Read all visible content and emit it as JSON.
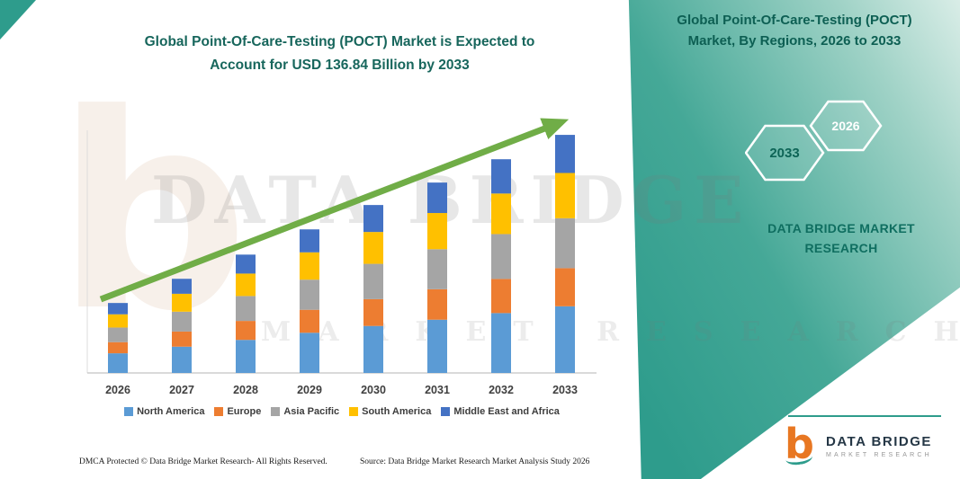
{
  "header": {
    "title_line1": "Global Point-Of-Care-Testing (POCT) Market is Expected to",
    "title_line2": "Account for USD 136.84 Billion by 2033"
  },
  "side_panel": {
    "title": "Global Point-Of-Care-Testing (POCT) Market, By Regions, 2026 to 2033",
    "hexagons": [
      {
        "year": "2033"
      },
      {
        "year": "2026"
      }
    ],
    "brand_line1": "DATA BRIDGE MARKET",
    "brand_line2": "RESEARCH",
    "accent_color": "#2E9C8C"
  },
  "watermark": {
    "letter": "b",
    "line1": "DATA BRIDGE",
    "line2": "MARKET RESEARCH"
  },
  "chart_data": {
    "type": "bar",
    "stacked": true,
    "title": "Global Point-Of-Care-Testing (POCT) Market is Expected to Account for USD 136.84 Billion by 2033",
    "unit": "USD Billion",
    "categories": [
      "2026",
      "2027",
      "2028",
      "2029",
      "2030",
      "2031",
      "2032",
      "2033"
    ],
    "series": [
      {
        "name": "North America",
        "color": "#5B9BD5",
        "values": [
          11.3,
          15.1,
          19.0,
          23.1,
          27.0,
          30.6,
          34.4,
          38.3
        ]
      },
      {
        "name": "Europe",
        "color": "#ED7D31",
        "values": [
          6.4,
          8.7,
          10.9,
          13.2,
          15.4,
          17.5,
          19.6,
          21.9
        ]
      },
      {
        "name": "Asia Pacific",
        "color": "#A5A5A5",
        "values": [
          8.4,
          11.4,
          14.3,
          17.3,
          20.3,
          23.0,
          25.8,
          28.7
        ]
      },
      {
        "name": "South America",
        "color": "#FFC000",
        "values": [
          7.6,
          10.3,
          12.9,
          15.7,
          18.3,
          20.8,
          23.3,
          26.0
        ]
      },
      {
        "name": "Middle East and Africa",
        "color": "#4472C4",
        "values": [
          6.5,
          8.6,
          10.9,
          13.2,
          15.5,
          17.5,
          19.7,
          21.9
        ]
      }
    ],
    "totals": [
      40.2,
      54.1,
      68.0,
      82.5,
      96.5,
      109.4,
      122.8,
      136.84
    ],
    "ylim": [
      0,
      145
    ],
    "grid": false,
    "legend_position": "bottom",
    "trend_arrow": {
      "show": true,
      "color": "#70AD47"
    }
  },
  "footer": {
    "dmca": "DMCA Protected © Data Bridge Market Research-  All Rights Reserved.",
    "source": "Source: Data Bridge Market Research  Market Analysis Study 2026",
    "logo_name": "DATA BRIDGE",
    "logo_sub": "MARKET RESEARCH"
  }
}
